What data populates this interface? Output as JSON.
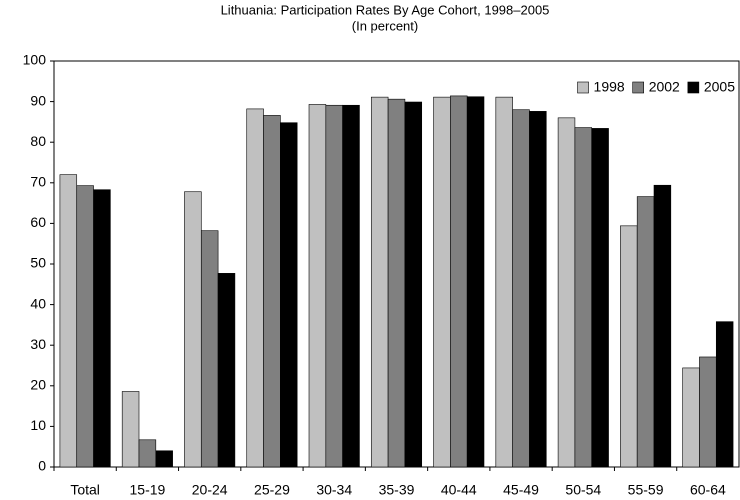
{
  "chart_data": {
    "type": "bar",
    "title": "Lithuania: Participation Rates By Age Cohort, 1998–2005",
    "subtitle": "(In percent)",
    "categories": [
      "Total",
      "15-19",
      "20-24",
      "25-29",
      "30-34",
      "35-39",
      "40-44",
      "45-49",
      "50-54",
      "55-59",
      "60-64"
    ],
    "series": [
      {
        "name": "1998",
        "color": "#c0c0c0",
        "values": [
          72,
          18.6,
          67.8,
          88.2,
          89.3,
          91.1,
          91.1,
          91.1,
          86.0,
          59.4,
          24.4
        ]
      },
      {
        "name": "2002",
        "color": "#808080",
        "values": [
          69.3,
          6.7,
          58.2,
          86.6,
          89.1,
          90.6,
          91.4,
          88.0,
          83.6,
          66.6,
          27.1
        ]
      },
      {
        "name": "2005",
        "color": "#000000",
        "values": [
          68.3,
          4.0,
          47.7,
          84.8,
          89.1,
          89.9,
          91.2,
          87.6,
          83.4,
          69.4,
          35.8
        ]
      }
    ],
    "ylim": [
      0,
      100
    ],
    "yticks": [
      0,
      10,
      20,
      30,
      40,
      50,
      60,
      70,
      80,
      90,
      100
    ],
    "legend": "top-right"
  }
}
